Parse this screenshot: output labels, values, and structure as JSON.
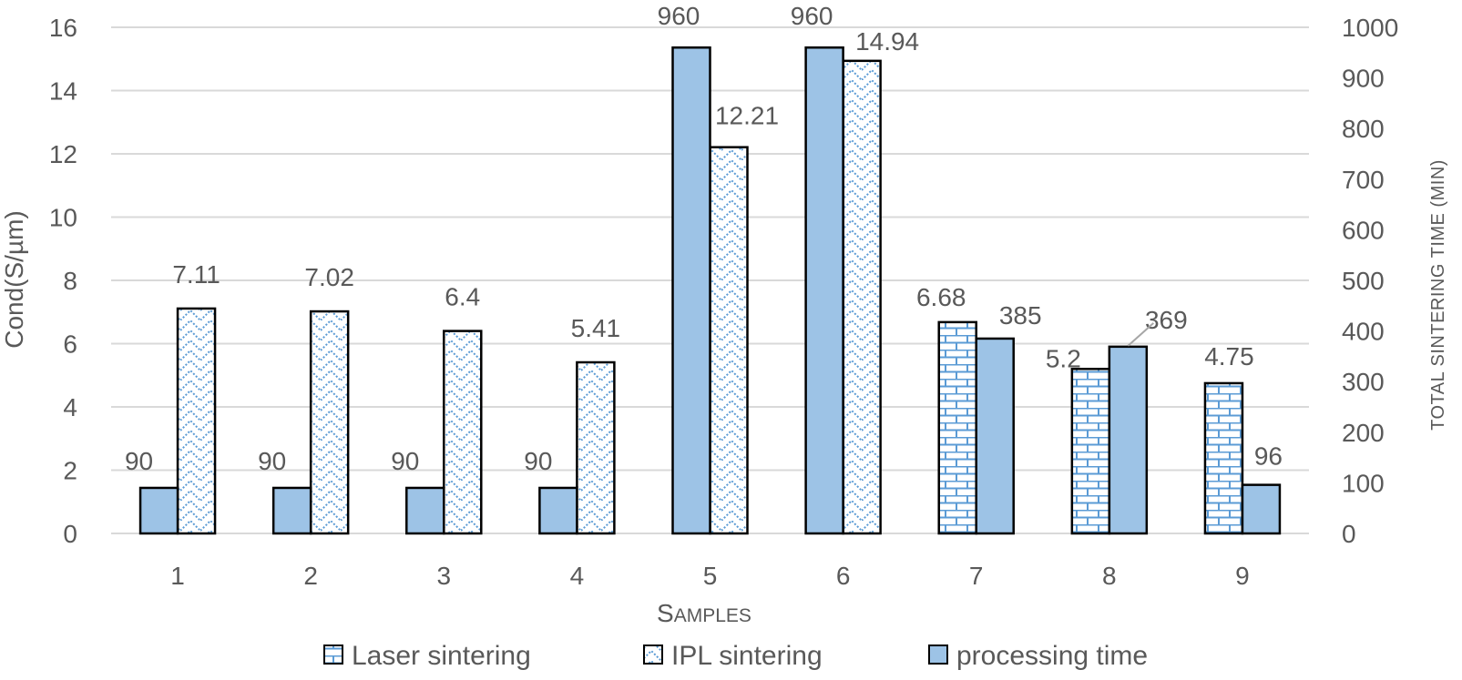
{
  "chart_data": {
    "type": "bar",
    "categories": [
      "1",
      "2",
      "3",
      "4",
      "5",
      "6",
      "7",
      "8",
      "9"
    ],
    "xlabel": "Samples",
    "ylabel_left": "Cond(S/µm)",
    "ylabel_right": "TOTAL SINTERING TIME (MIN)",
    "ylim_left": [
      0,
      16
    ],
    "yticks_left": [
      "0",
      "2",
      "4",
      "6",
      "8",
      "10",
      "12",
      "14",
      "16"
    ],
    "ylim_right": [
      0,
      1000
    ],
    "yticks_right": [
      "0",
      "100",
      "200",
      "300",
      "400",
      "500",
      "600",
      "700",
      "800",
      "900",
      "1000"
    ],
    "grid": true,
    "legend_position": "bottom",
    "series": [
      {
        "name": "Laser sintering",
        "axis": "left",
        "pattern": "brick",
        "values": [
          null,
          null,
          null,
          null,
          null,
          null,
          6.68,
          5.2,
          4.75
        ],
        "labels": [
          "",
          "",
          "",
          "",
          "",
          "",
          "6.68",
          "5.2",
          "4.75"
        ]
      },
      {
        "name": "IPL sintering",
        "axis": "left",
        "pattern": "zigzag",
        "values": [
          7.11,
          7.02,
          6.4,
          5.41,
          12.21,
          14.94,
          null,
          null,
          null
        ],
        "labels": [
          "7.11",
          "7.02",
          "6.4",
          "5.41",
          "12.21",
          "14.94",
          "",
          "",
          ""
        ]
      },
      {
        "name": "processing time",
        "axis": "right",
        "pattern": "solid",
        "values": [
          90,
          90,
          90,
          90,
          960,
          960,
          385,
          369,
          96
        ],
        "labels": [
          "90",
          "90",
          "90",
          "90",
          "960",
          "960",
          "385",
          "369",
          "96"
        ]
      }
    ]
  },
  "colors": {
    "fill": "#9dc3e6",
    "pattern_line": "#5b9bd5",
    "grid": "#d9d9d9",
    "text": "#595959",
    "outline": "#000000"
  }
}
